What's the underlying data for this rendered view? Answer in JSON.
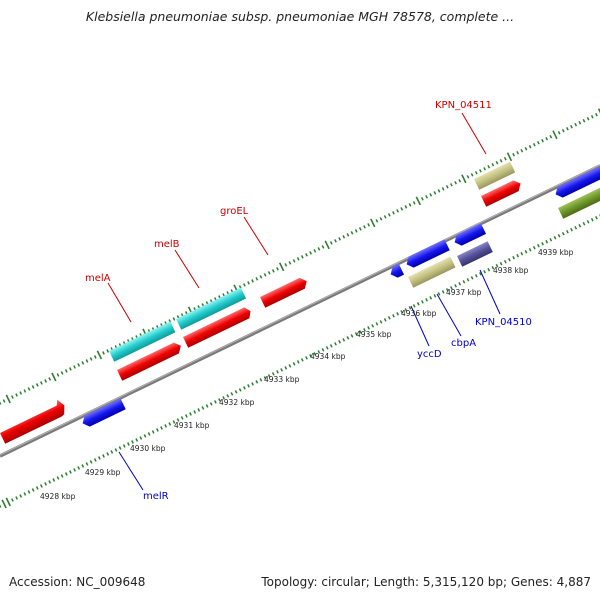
{
  "title": "Klebsiella pneumoniae subsp. pneumoniae MGH 78578, complete ...",
  "accession": "Accession: NC_009648",
  "summary": "Topology: circular; Length: 5,315,120 bp; Genes: 4,887",
  "colors": {
    "backbone": "#888888",
    "tick": "#2e7d32",
    "label_forward": "#cc0000",
    "label_reverse": "#0000cc"
  },
  "kbp_ticks": [
    "4928 kbp",
    "4929 kbp",
    "4930 kbp",
    "4931 kbp",
    "4932 kbp",
    "4933 kbp",
    "4934 kbp",
    "4935 kbp",
    "4936 kbp",
    "4937 kbp",
    "4938 kbp",
    "4939 kbp"
  ],
  "forward_labels": [
    "melA",
    "melB",
    "groEL",
    "KPN_04511"
  ],
  "reverse_labels": [
    "melR",
    "yccD",
    "cbpA",
    "KPN_04510"
  ]
}
